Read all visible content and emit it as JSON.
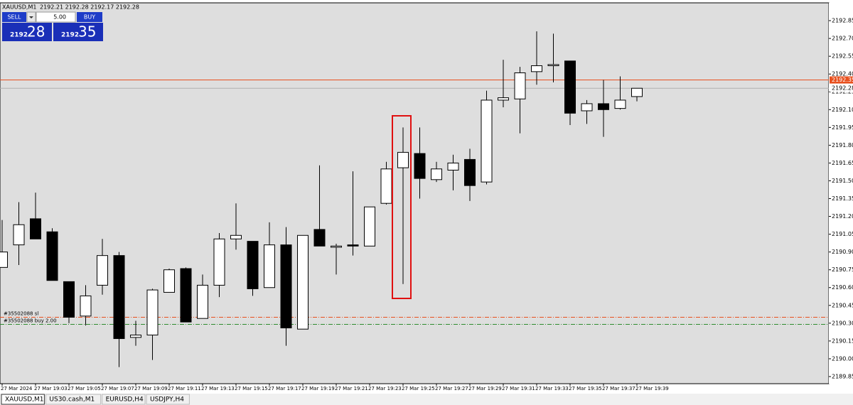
{
  "header": {
    "symbol": "XAUUSD,M1",
    "ohlc": "2192.21 2192.28 2192.17 2192.28"
  },
  "trade_panel": {
    "sell": "SELL",
    "lot": "5.00",
    "buy": "BUY",
    "bid_big": "2192",
    "bid_small": "28",
    "ask_big": "2192",
    "ask_small": "35"
  },
  "chart_data": {
    "type": "candlestick",
    "categories": [
      "27 Mar 2024",
      null,
      "27 Mar 19:03",
      null,
      "27 Mar 19:05",
      null,
      "27 Mar 19:07",
      null,
      "27 Mar 19:09",
      null,
      "27 Mar 19:11",
      null,
      "27 Mar 19:13",
      null,
      "27 Mar 19:15",
      null,
      "27 Mar 19:17",
      null,
      "27 Mar 19:19",
      null,
      "27 Mar 19:21",
      null,
      "27 Mar 19:23",
      null,
      "27 Mar 19:25",
      null,
      "27 Mar 19:27",
      null,
      "27 Mar 19:29",
      null,
      "27 Mar 19:31",
      null,
      "27 Mar 19:33",
      null,
      "27 Mar 19:35",
      null,
      "27 Mar 19:37",
      null,
      "27 Mar 19:39"
    ],
    "open": [
      2190.77,
      2190.96,
      2191.18,
      2191.07,
      2190.65,
      2190.36,
      2190.62,
      2190.87,
      2190.18,
      2190.2,
      2190.56,
      2190.76,
      2190.34,
      2190.62,
      2191.01,
      2190.99,
      2190.6,
      2190.96,
      2190.25,
      2191.09,
      2190.94,
      2190.96,
      2190.95,
      2191.31,
      2191.61,
      2191.73,
      2191.51,
      2191.59,
      2191.68,
      2191.49,
      2192.18,
      2192.19,
      2192.42,
      2192.47,
      2192.51,
      2192.09,
      2192.15,
      2192.11,
      2192.21
    ],
    "high": [
      2191.17,
      2191.32,
      2191.4,
      2191.1,
      2190.65,
      2190.62,
      2191.01,
      2190.9,
      2190.32,
      2190.59,
      2190.76,
      2190.77,
      2190.71,
      2191.06,
      2191.31,
      2190.99,
      2191.15,
      2191.11,
      2191.04,
      2191.63,
      2190.97,
      2191.58,
      2191.28,
      2191.66,
      2191.95,
      2191.95,
      2191.66,
      2191.72,
      2191.77,
      2192.26,
      2192.52,
      2192.46,
      2192.76,
      2192.74,
      2192.51,
      2192.18,
      2192.35,
      2192.38,
      2192.28
    ],
    "low": [
      2190.77,
      2190.79,
      2191.01,
      2190.66,
      2190.3,
      2190.28,
      2190.54,
      2189.93,
      2190.11,
      2189.99,
      2190.56,
      2190.31,
      2190.34,
      2190.52,
      2190.92,
      2190.53,
      2190.6,
      2190.11,
      2190.25,
      2190.95,
      2190.71,
      2190.87,
      2190.95,
      2191.3,
      2190.63,
      2191.35,
      2191.49,
      2191.42,
      2191.33,
      2191.47,
      2192.12,
      2191.9,
      2192.31,
      2192.33,
      2191.97,
      2191.98,
      2191.87,
      2192.1,
      2192.17
    ],
    "close": [
      2190.9,
      2191.13,
      2191.01,
      2190.66,
      2190.35,
      2190.53,
      2190.87,
      2190.17,
      2190.2,
      2190.58,
      2190.75,
      2190.31,
      2190.62,
      2191.01,
      2191.04,
      2190.59,
      2190.96,
      2190.26,
      2191.04,
      2190.95,
      2190.95,
      2190.95,
      2191.28,
      2191.6,
      2191.74,
      2191.52,
      2191.6,
      2191.65,
      2191.46,
      2192.18,
      2192.2,
      2192.41,
      2192.47,
      2192.48,
      2192.07,
      2192.15,
      2192.1,
      2192.18,
      2192.28
    ],
    "up_color": "#ffffff",
    "down_color": "#000000",
    "ylim": [
      2189.79,
      2193.0
    ],
    "yticks": [
      2192.85,
      {
        "value": 2192.7,
        "label": "2192.70"
      },
      2192.55,
      {
        "value": 2192.4,
        "label": "2192.40"
      },
      2192.25,
      {
        "value": 2192.1,
        "label": "2192.10"
      },
      2191.95,
      {
        "value": 2191.8,
        "label": "2191.80"
      },
      2191.65,
      {
        "value": 2191.5,
        "label": "2191.50"
      },
      2191.35,
      {
        "value": 2191.2,
        "label": "2191.20"
      },
      2191.05,
      {
        "value": 2190.9,
        "label": "2190.90"
      },
      2190.75,
      {
        "value": 2190.6,
        "label": "2190.60"
      },
      2190.45,
      {
        "value": 2190.3,
        "label": "2190.30"
      },
      2190.15,
      {
        "value": 2190,
        "label": "2190.00"
      },
      2189.85
    ],
    "price_lines": [
      {
        "value": 2192.35,
        "color": "#e8501e"
      },
      {
        "value": 2192.28,
        "color": "#b0b0b0"
      }
    ],
    "levels": [
      {
        "name": "#35502088 sl",
        "value": 2190.35,
        "color": "#e8501e"
      },
      {
        "name": "#35502088 buy 2.00",
        "value": 2190.29,
        "color": "#2e8b2e"
      }
    ]
  },
  "tabs": [
    "XAUUSD,M1",
    "US30.cash,M1",
    "EURUSD,H4",
    "USDJPY,H4"
  ]
}
